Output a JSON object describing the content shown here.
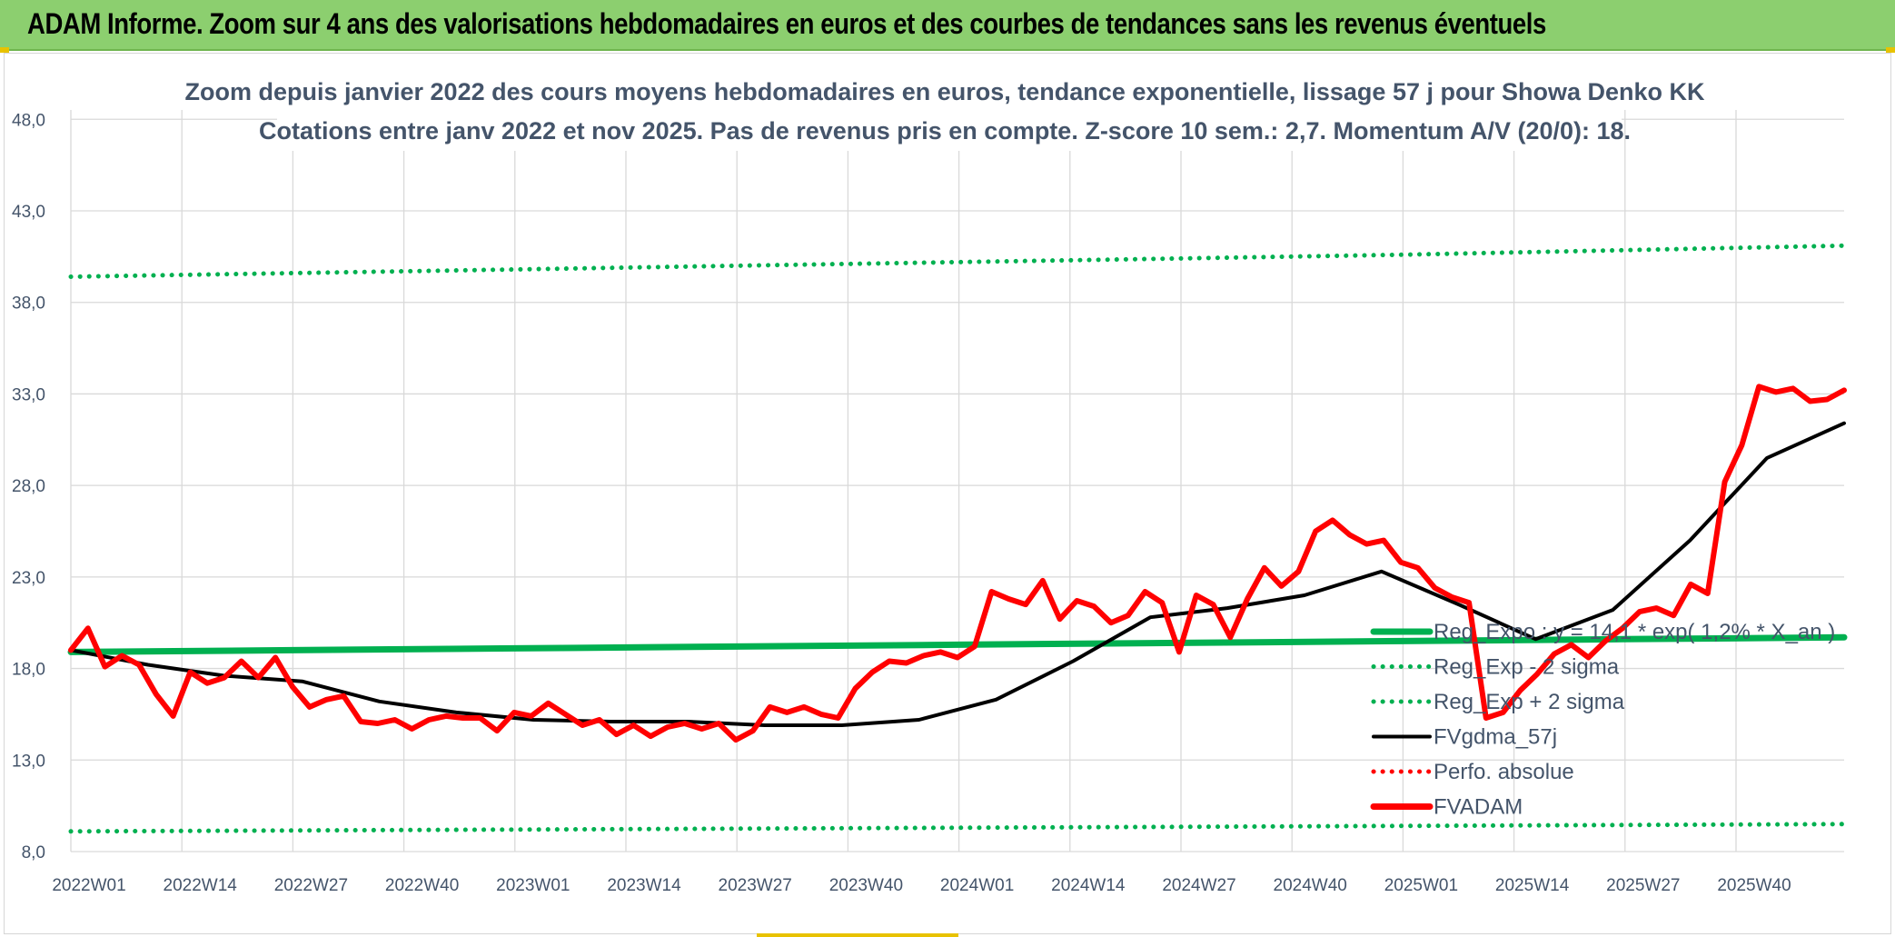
{
  "banner": {
    "title": "ADAM Informe. Zoom sur 4 ans des valorisations hebdomadaires en euros et des courbes de tendances sans les revenus éventuels",
    "color": "#8ccf6f"
  },
  "chart_data": {
    "type": "line",
    "title": "Zoom depuis janvier 2022 des cours moyens hebdomadaires en euros, tendance exponentielle, lissage 57 j pour Showa Denko KK",
    "subtitle": "Cotations entre janv 2022 et nov 2025. Pas de revenus pris en compte. Z-score 10 sem.: 2,7. Momentum A/V (20/0): 18.",
    "ylim": [
      8,
      50
    ],
    "y_ticks": [
      "8,0",
      "13,0",
      "18,0",
      "23,0",
      "28,0",
      "33,0",
      "38,0",
      "43,0",
      "48,0"
    ],
    "x_tick_labels": [
      "2022W01",
      "2022W14",
      "2022W27",
      "2022W40",
      "2023W01",
      "2023W14",
      "2023W27",
      "2023W40",
      "2024W01",
      "2024W14",
      "2024W27",
      "2024W40",
      "2025W01",
      "2025W14",
      "2025W27",
      "2025W40"
    ],
    "x_tick_step_weeks": 13,
    "grid": "vertical and horizontal",
    "legend_position": "right",
    "series": [
      {
        "name": "Reg_Expo : y = 14,1 * exp( 1,2% * X_an )",
        "color": "#00b050",
        "style": "solid-thick",
        "values": [
          18.9,
          19.0,
          19.1,
          19.2,
          19.3,
          19.4,
          19.5,
          19.6,
          19.7
        ]
      },
      {
        "name": "Reg_Exp - 2 sigma",
        "color": "#00b050",
        "style": "dotted",
        "values": [
          9.1,
          9.15,
          9.2,
          9.25,
          9.3,
          9.35,
          9.4,
          9.45,
          9.5
        ]
      },
      {
        "name": "Reg_Exp + 2 sigma",
        "color": "#00b050",
        "style": "dotted",
        "values": [
          39.4,
          39.6,
          39.8,
          40.0,
          40.2,
          40.4,
          40.6,
          40.85,
          41.1
        ]
      },
      {
        "name": "FVgdma_57j",
        "color": "#000000",
        "style": "solid",
        "values": [
          19.0,
          18.2,
          17.6,
          17.3,
          16.2,
          15.6,
          15.2,
          15.1,
          15.1,
          14.9,
          14.9,
          15.2,
          16.3,
          18.4,
          20.8,
          21.3,
          22.0,
          23.3,
          21.5,
          19.6,
          21.2,
          25.0,
          29.5,
          31.4
        ]
      },
      {
        "name": "Perfo. absolue",
        "color": "#ff0000",
        "style": "dotted",
        "values": []
      },
      {
        "name": "FVADAM",
        "color": "#ff0000",
        "style": "solid-thick",
        "values": [
          19.0,
          20.2,
          18.1,
          18.7,
          18.2,
          16.6,
          15.4,
          17.8,
          17.2,
          17.5,
          18.4,
          17.5,
          18.6,
          17.0,
          15.9,
          16.3,
          16.5,
          15.1,
          15.0,
          15.2,
          14.7,
          15.2,
          15.4,
          15.3,
          15.3,
          14.6,
          15.6,
          15.4,
          16.1,
          15.5,
          14.9,
          15.2,
          14.4,
          14.9,
          14.3,
          14.8,
          15.0,
          14.7,
          15.0,
          14.1,
          14.6,
          15.9,
          15.6,
          15.9,
          15.5,
          15.3,
          16.9,
          17.8,
          18.4,
          18.3,
          18.7,
          18.9,
          18.6,
          19.2,
          22.2,
          21.8,
          21.5,
          22.8,
          20.7,
          21.7,
          21.4,
          20.5,
          20.9,
          22.2,
          21.6,
          18.9,
          22.0,
          21.5,
          19.7,
          21.8,
          23.5,
          22.5,
          23.3,
          25.5,
          26.1,
          25.3,
          24.8,
          25.0,
          23.8,
          23.5,
          22.4,
          21.9,
          21.6,
          15.3,
          15.6,
          16.8,
          17.7,
          18.8,
          19.3,
          18.6,
          19.5,
          20.2,
          21.1,
          21.3,
          20.9,
          22.6,
          22.1,
          28.2,
          30.2,
          33.4,
          33.1,
          33.3,
          32.6,
          32.7,
          33.2
        ]
      }
    ]
  }
}
